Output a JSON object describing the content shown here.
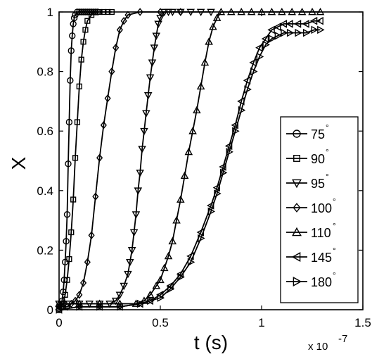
{
  "chart_data": {
    "type": "line",
    "xlabel": "t (s)",
    "ylabel": "X",
    "x_exponent_base": "x 10",
    "x_exponent_power": "-7",
    "xlim": [
      0,
      1.5
    ],
    "ylim": [
      0,
      1
    ],
    "x_ticks": [
      "0",
      "0.5",
      "1",
      "1.5"
    ],
    "y_ticks": [
      "0",
      "0.2",
      "0.4",
      "0.6",
      "0.8",
      "1"
    ],
    "grid": false,
    "legend_position": "right",
    "degree_symbol": "°",
    "series": [
      {
        "name": "75",
        "marker": "circle",
        "x": [
          0.0,
          0.01,
          0.015,
          0.02,
          0.025,
          0.03,
          0.035,
          0.04,
          0.045,
          0.05,
          0.055,
          0.06,
          0.065,
          0.07,
          0.075,
          0.08,
          0.09,
          0.1,
          0.11,
          0.12,
          0.13,
          0.14,
          0.15,
          0.16,
          0.17,
          0.18,
          0.19
        ],
        "y": [
          0.0,
          0.01,
          0.03,
          0.06,
          0.1,
          0.16,
          0.23,
          0.32,
          0.49,
          0.63,
          0.77,
          0.87,
          0.92,
          0.96,
          0.98,
          0.99,
          1.0,
          1.0,
          1.0,
          1.0,
          1.0,
          1.0,
          1.0,
          1.0,
          1.0,
          1.0,
          1.0
        ]
      },
      {
        "name": "90",
        "marker": "square",
        "x": [
          0.0,
          0.02,
          0.03,
          0.04,
          0.05,
          0.06,
          0.07,
          0.08,
          0.09,
          0.1,
          0.11,
          0.12,
          0.13,
          0.14,
          0.16,
          0.18,
          0.2,
          0.22,
          0.24,
          0.26
        ],
        "y": [
          0.0,
          0.02,
          0.05,
          0.1,
          0.17,
          0.26,
          0.37,
          0.51,
          0.63,
          0.75,
          0.84,
          0.9,
          0.94,
          0.97,
          0.99,
          1.0,
          1.0,
          1.0,
          1.0,
          1.0
        ]
      },
      {
        "name": "95",
        "marker": "triangle-down",
        "x": [
          0.0,
          0.05,
          0.1,
          0.15,
          0.2,
          0.25,
          0.28,
          0.3,
          0.32,
          0.34,
          0.35,
          0.36,
          0.37,
          0.38,
          0.39,
          0.4,
          0.41,
          0.42,
          0.43,
          0.44,
          0.45,
          0.46,
          0.47,
          0.48,
          0.49,
          0.5,
          0.52,
          0.54,
          0.56,
          0.6,
          0.65,
          0.7,
          0.75
        ],
        "y": [
          0.02,
          0.02,
          0.02,
          0.02,
          0.02,
          0.02,
          0.03,
          0.05,
          0.08,
          0.12,
          0.16,
          0.2,
          0.26,
          0.32,
          0.4,
          0.46,
          0.54,
          0.6,
          0.66,
          0.72,
          0.78,
          0.83,
          0.88,
          0.92,
          0.96,
          0.98,
          1.0,
          1.0,
          1.0,
          1.0,
          1.0,
          1.0,
          1.0
        ]
      },
      {
        "name": "100",
        "marker": "diamond",
        "x": [
          0.0,
          0.02,
          0.04,
          0.06,
          0.08,
          0.1,
          0.12,
          0.14,
          0.16,
          0.18,
          0.2,
          0.22,
          0.24,
          0.26,
          0.28,
          0.3,
          0.32,
          0.34,
          0.4,
          0.5,
          0.6
        ],
        "y": [
          0.01,
          0.01,
          0.01,
          0.02,
          0.03,
          0.05,
          0.09,
          0.16,
          0.25,
          0.38,
          0.51,
          0.62,
          0.71,
          0.8,
          0.88,
          0.94,
          0.97,
          0.99,
          1.0,
          1.0,
          1.0
        ]
      },
      {
        "name": "110",
        "marker": "triangle-up",
        "x": [
          0.0,
          0.1,
          0.2,
          0.3,
          0.38,
          0.42,
          0.45,
          0.48,
          0.5,
          0.52,
          0.54,
          0.56,
          0.58,
          0.6,
          0.62,
          0.64,
          0.66,
          0.68,
          0.7,
          0.72,
          0.74,
          0.76,
          0.78,
          0.8,
          0.85,
          0.9,
          0.95,
          1.0,
          1.05,
          1.1,
          1.15,
          1.2,
          1.25,
          1.29
        ],
        "y": [
          0.02,
          0.02,
          0.02,
          0.02,
          0.02,
          0.03,
          0.05,
          0.08,
          0.1,
          0.14,
          0.18,
          0.23,
          0.3,
          0.37,
          0.45,
          0.53,
          0.6,
          0.67,
          0.75,
          0.83,
          0.9,
          0.95,
          0.98,
          1.0,
          1.0,
          1.0,
          1.0,
          1.0,
          1.0,
          1.0,
          1.0,
          1.0,
          1.0,
          1.0
        ]
      },
      {
        "name": "145",
        "marker": "triangle-left",
        "x": [
          0.0,
          0.1,
          0.2,
          0.3,
          0.4,
          0.45,
          0.5,
          0.55,
          0.6,
          0.65,
          0.7,
          0.75,
          0.78,
          0.81,
          0.84,
          0.87,
          0.9,
          0.93,
          0.96,
          0.99,
          1.02,
          1.05,
          1.08,
          1.11,
          1.14,
          1.18,
          1.22,
          1.26,
          1.29
        ],
        "y": [
          0.0,
          0.01,
          0.01,
          0.01,
          0.02,
          0.03,
          0.05,
          0.08,
          0.12,
          0.18,
          0.26,
          0.35,
          0.41,
          0.48,
          0.55,
          0.62,
          0.7,
          0.77,
          0.83,
          0.88,
          0.91,
          0.94,
          0.95,
          0.96,
          0.96,
          0.96,
          0.96,
          0.97,
          0.97
        ]
      },
      {
        "name": "180",
        "marker": "triangle-right",
        "x": [
          0.0,
          0.1,
          0.2,
          0.3,
          0.4,
          0.45,
          0.5,
          0.55,
          0.6,
          0.65,
          0.7,
          0.75,
          0.78,
          0.81,
          0.84,
          0.87,
          0.9,
          0.93,
          0.96,
          0.99,
          1.02,
          1.05,
          1.08,
          1.11,
          1.14,
          1.18,
          1.22,
          1.26,
          1.29
        ],
        "y": [
          0.0,
          0.01,
          0.01,
          0.01,
          0.02,
          0.03,
          0.04,
          0.07,
          0.11,
          0.16,
          0.24,
          0.33,
          0.39,
          0.46,
          0.53,
          0.6,
          0.67,
          0.74,
          0.8,
          0.85,
          0.89,
          0.91,
          0.92,
          0.93,
          0.93,
          0.93,
          0.93,
          0.94,
          0.94
        ]
      }
    ]
  }
}
